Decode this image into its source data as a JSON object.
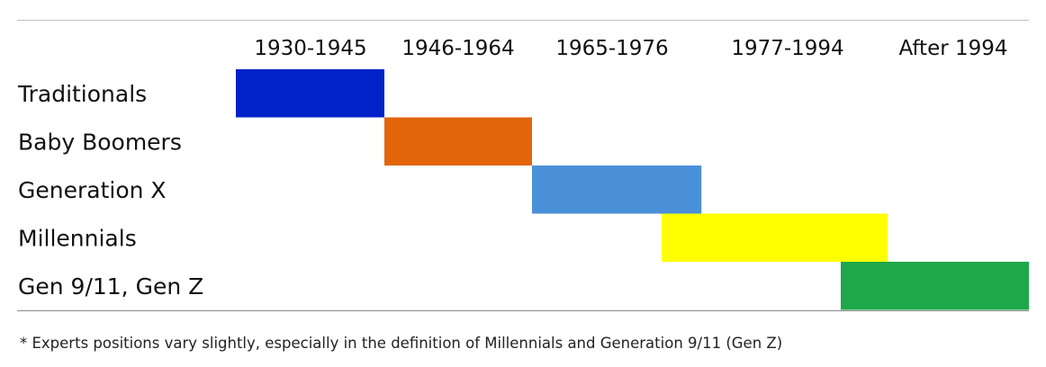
{
  "chart_data": {
    "type": "gantt",
    "columns": [
      "1930-1945",
      "1946-1964",
      "1965-1976",
      "1977-1994",
      "After 1994"
    ],
    "series": [
      {
        "name": "Traditionals",
        "start": 1930,
        "end": 1945,
        "color": "#0022c8"
      },
      {
        "name": "Baby Boomers",
        "start": 1946,
        "end": 1964,
        "color": "#e2650c"
      },
      {
        "name": "Generation X",
        "start": 1965,
        "end": 1980,
        "color": "#4a90d9"
      },
      {
        "name": "Millennials",
        "start": 1977,
        "end": 1999,
        "color": "#ffff00"
      },
      {
        "name": "Gen 9/11, Gen Z",
        "start": 1995,
        "end": 2015,
        "color": "#1fa84a"
      }
    ]
  },
  "footnote": "* Experts positions vary slightly,  especially in the definition of Millennials  and Generation 9/11 (Gen Z)"
}
